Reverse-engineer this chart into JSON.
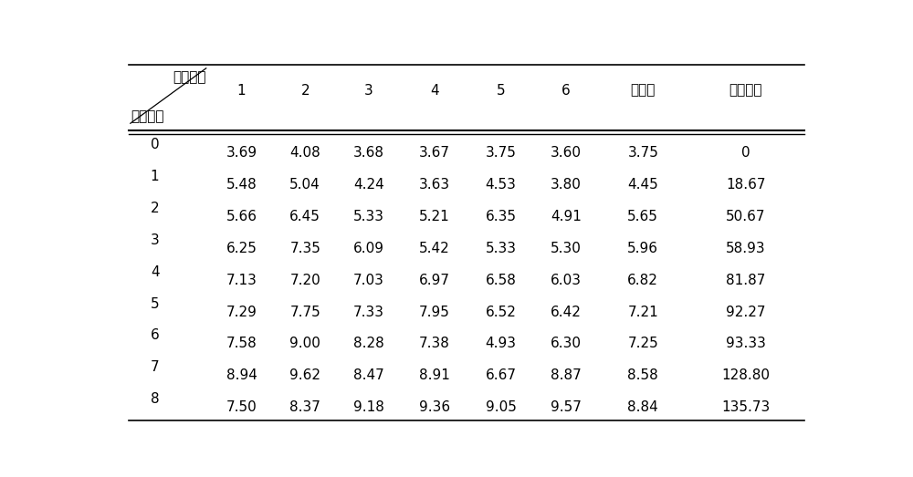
{
  "header_top_right": "小鼠编号",
  "header_bottom_left": "给铁周数",
  "col_headers": [
    "1",
    "2",
    "3",
    "4",
    "5",
    "6",
    "平均值",
    "增加比率"
  ],
  "rows": [
    [
      "0",
      "3.69",
      "4.08",
      "3.68",
      "3.67",
      "3.75",
      "3.60",
      "3.75",
      "0"
    ],
    [
      "1",
      "5.48",
      "5.04",
      "4.24",
      "3.63",
      "4.53",
      "3.80",
      "4.45",
      "18.67"
    ],
    [
      "2",
      "5.66",
      "6.45",
      "5.33",
      "5.21",
      "6.35",
      "4.91",
      "5.65",
      "50.67"
    ],
    [
      "3",
      "6.25",
      "7.35",
      "6.09",
      "5.42",
      "5.33",
      "5.30",
      "5.96",
      "58.93"
    ],
    [
      "4",
      "7.13",
      "7.20",
      "7.03",
      "6.97",
      "6.58",
      "6.03",
      "6.82",
      "81.87"
    ],
    [
      "5",
      "7.29",
      "7.75",
      "7.33",
      "7.95",
      "6.52",
      "6.42",
      "7.21",
      "92.27"
    ],
    [
      "6",
      "7.58",
      "9.00",
      "8.28",
      "7.38",
      "4.93",
      "6.30",
      "7.25",
      "93.33"
    ],
    [
      "7",
      "8.94",
      "9.62",
      "8.47",
      "8.91",
      "6.67",
      "8.87",
      "8.58",
      "128.80"
    ],
    [
      "8",
      "7.50",
      "8.37",
      "9.18",
      "9.36",
      "9.05",
      "9.57",
      "8.84",
      "135.73"
    ]
  ],
  "background_color": "#ffffff",
  "text_color": "#000000",
  "font_size": 11,
  "line_color": "#000000"
}
